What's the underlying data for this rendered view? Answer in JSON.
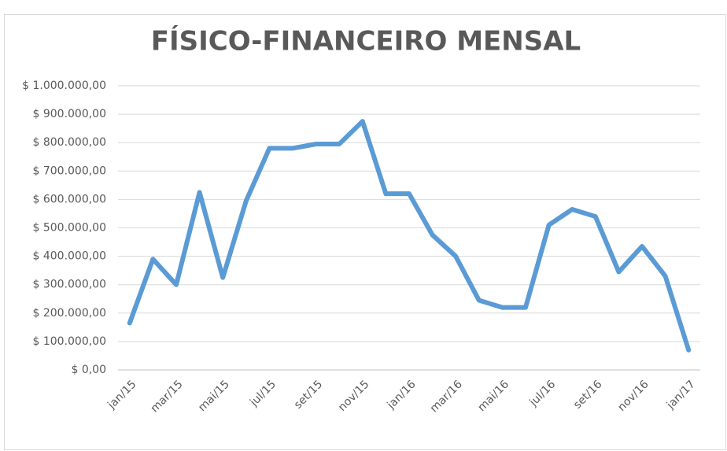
{
  "chart_data": {
    "type": "line",
    "title": "FÍSICO-FINANCEIRO MENSAL",
    "categories": [
      "jan/15",
      null,
      "mar/15",
      null,
      "mai/15",
      null,
      "jul/15",
      null,
      "set/15",
      null,
      "nov/15",
      null,
      "jan/16",
      null,
      "mar/16",
      null,
      "mai/16",
      null,
      "jul/16",
      null,
      "set/16",
      null,
      "nov/16",
      null,
      "jan/17"
    ],
    "series": [
      {
        "name": "Físico-financeiro",
        "color": "#5b9bd5",
        "values": [
          165000,
          390000,
          300000,
          625000,
          325000,
          595000,
          780000,
          780000,
          795000,
          795000,
          875000,
          620000,
          620000,
          475000,
          400000,
          245000,
          220000,
          220000,
          510000,
          565000,
          540000,
          345000,
          435000,
          330000,
          70000
        ]
      }
    ],
    "ylim": [
      0,
      1000000
    ],
    "yticks": [
      {
        "value": 0,
        "label": "$ 0,00"
      },
      {
        "value": 100000,
        "label": "$ 100.000,00"
      },
      {
        "value": 200000,
        "label": "$ 200.000,00"
      },
      {
        "value": 300000,
        "label": "$ 300.000,00"
      },
      {
        "value": 400000,
        "label": "$ 400.000,00"
      },
      {
        "value": 500000,
        "label": "$ 500.000,00"
      },
      {
        "value": 600000,
        "label": "$ 600.000,00"
      },
      {
        "value": 700000,
        "label": "$ 700.000,00"
      },
      {
        "value": 800000,
        "label": "$ 800.000,00"
      },
      {
        "value": 900000,
        "label": "$ 900.000,00"
      },
      {
        "value": 1000000,
        "label": "$ 1.000.000,00"
      }
    ],
    "grid": true
  }
}
